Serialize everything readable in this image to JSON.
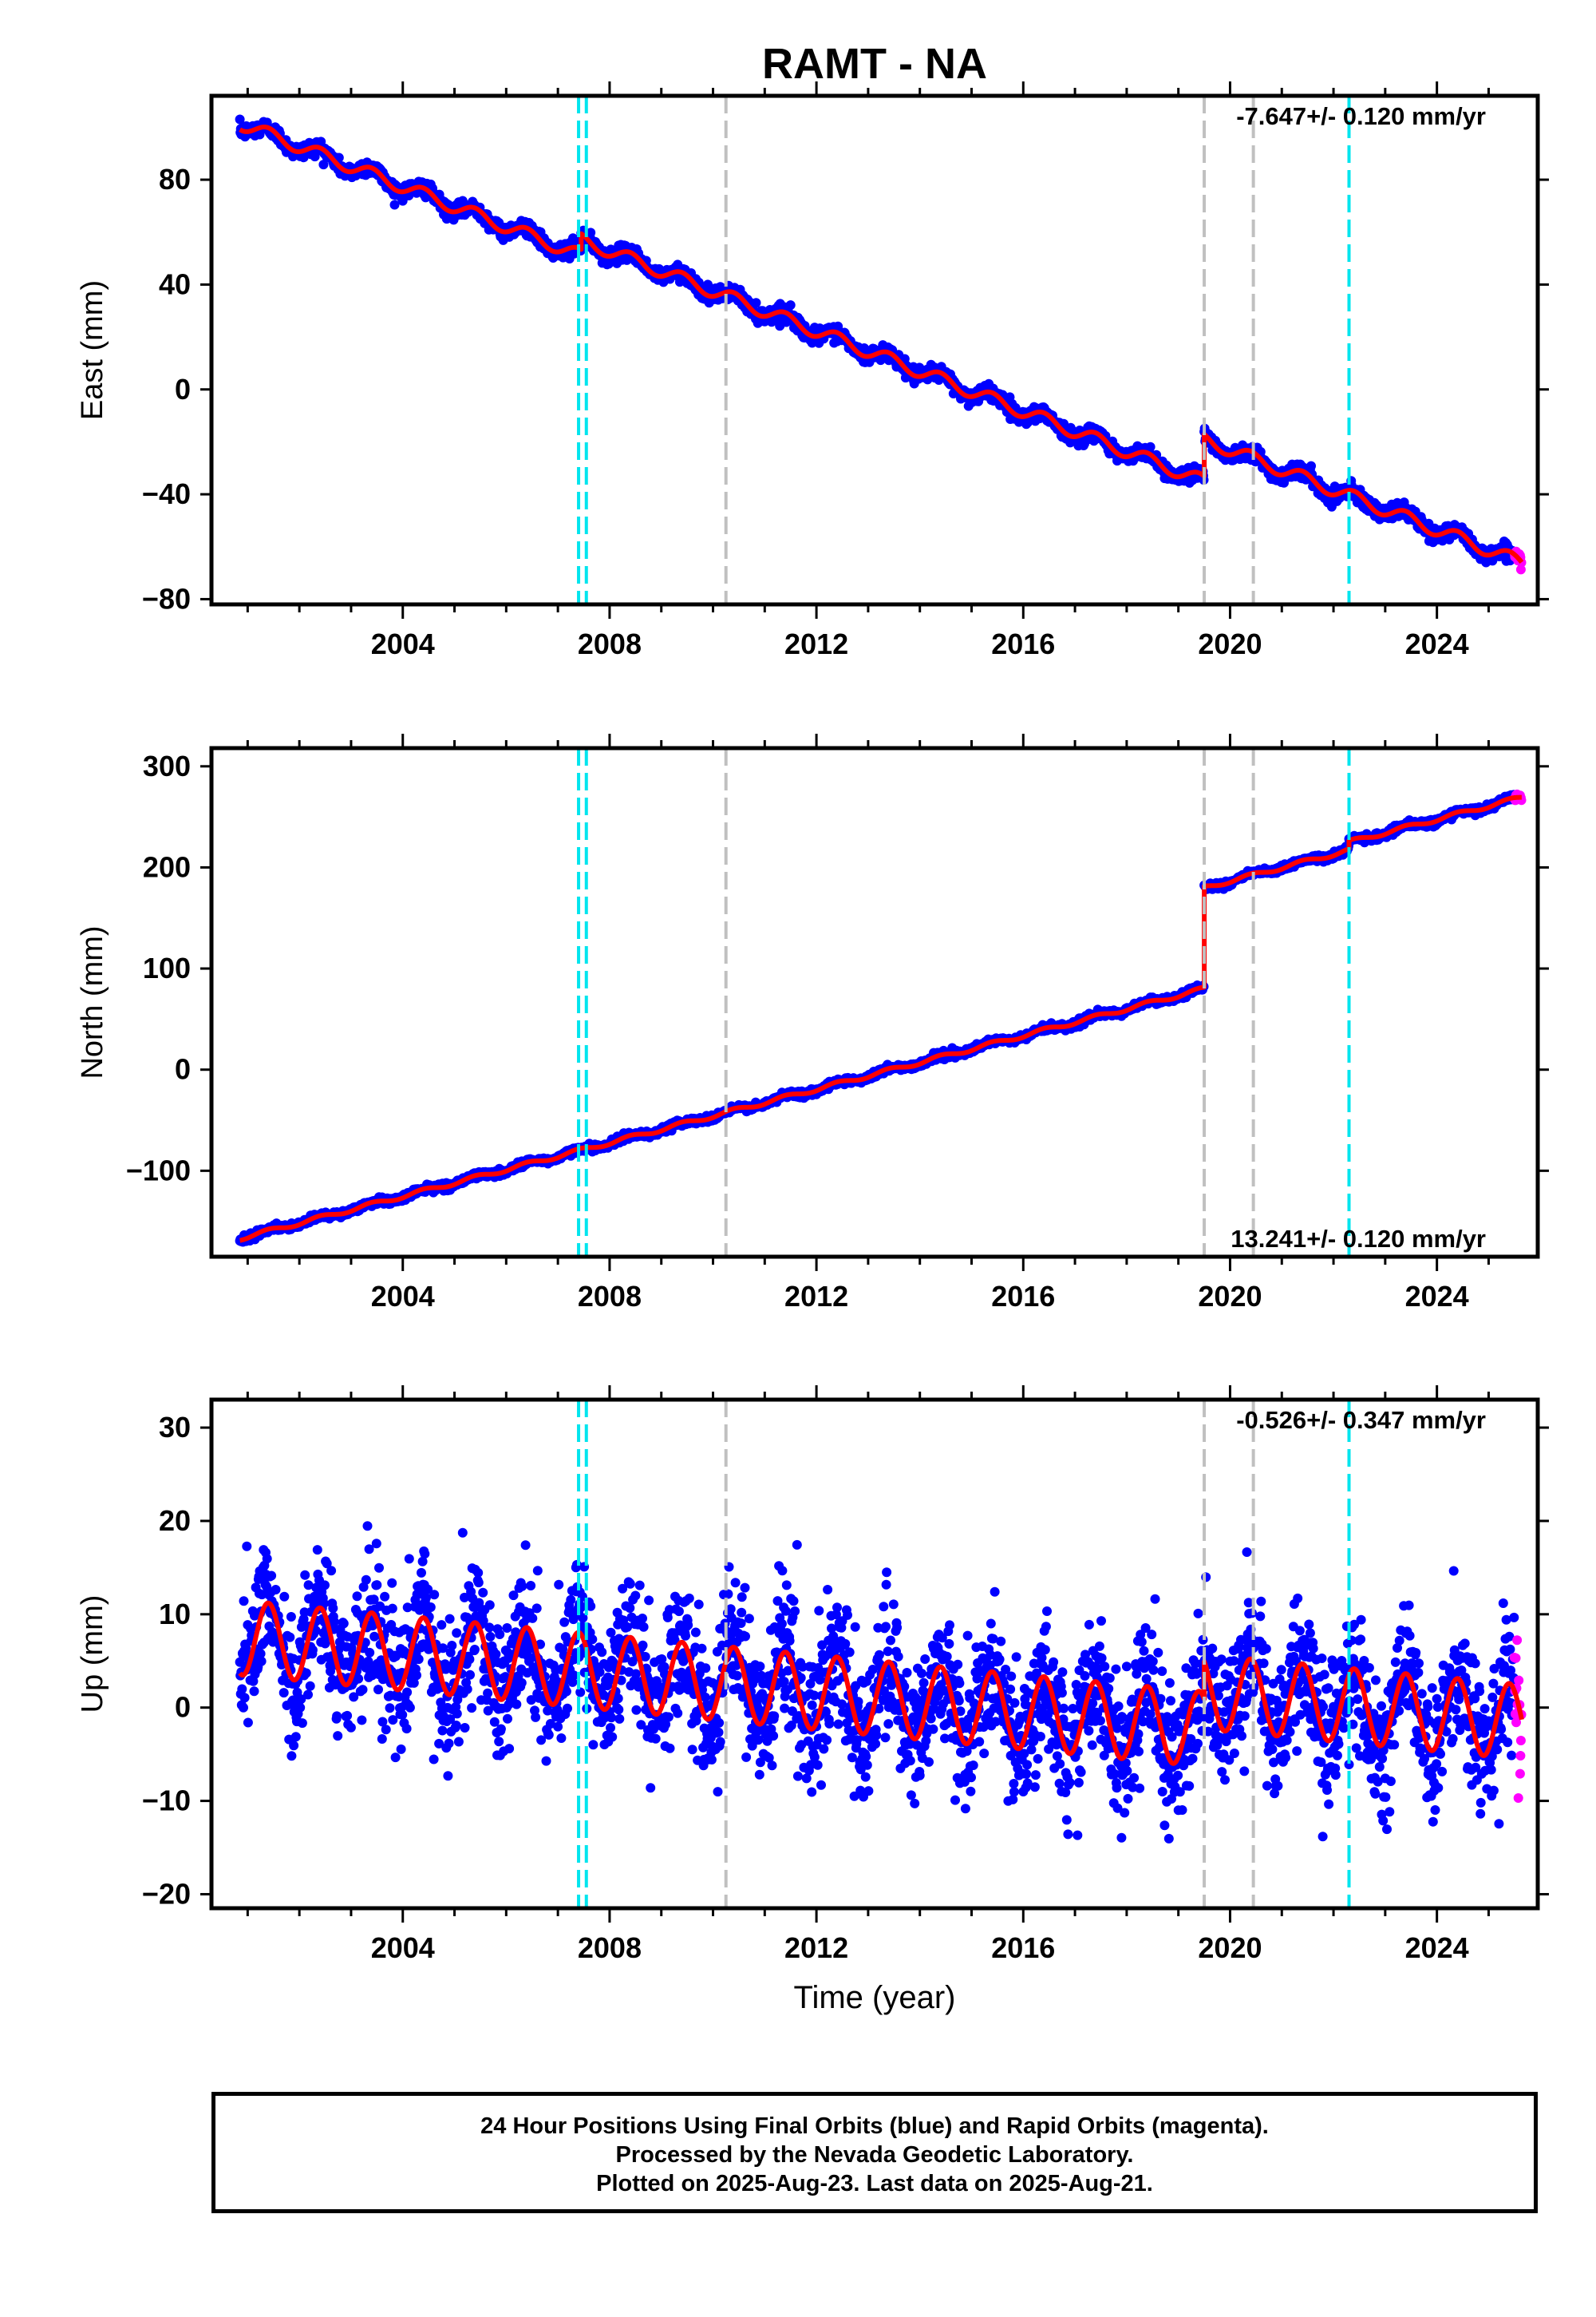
{
  "title": "RAMT - NA",
  "xlabel": "Time (year)",
  "footer": {
    "line1": "24 Hour Positions Using Final Orbits (blue) and Rapid Orbits (magenta).",
    "line2": "Processed by the Nevada Geodetic Laboratory.",
    "line3": "Plotted on 2025-Aug-23. Last data on 2025-Aug-21."
  },
  "colors": {
    "final": "#0000ff",
    "rapid": "#ff00ff",
    "model": "#ff0000",
    "equipment_change": "#00e5ee",
    "earthquake": "#c0c0c0"
  },
  "chart_data": [
    {
      "type": "scatter",
      "component": "east",
      "ylabel": "East (mm)",
      "rate_label": "-7.647+/- 0.120 mm/yr",
      "xlim": [
        2000.3,
        2025.95
      ],
      "ylim": [
        -82,
        112
      ],
      "xticks": [
        2004,
        2008,
        2012,
        2016,
        2020,
        2024
      ],
      "yticks": [
        -80,
        -40,
        0,
        40,
        80
      ],
      "x_start": 2000.85,
      "x_end": 2025.64,
      "rapid_from": 2025.5,
      "trend": {
        "rate_mm_per_yr": -7.647,
        "value_at_start": 101.5
      },
      "offsets": [
        {
          "epoch": 2007.45,
          "jump_mm": 6.0
        },
        {
          "epoch": 2019.5,
          "jump_mm": 16.0
        }
      ],
      "seasonal": {
        "amplitude_mm": 2.5
      },
      "noise_sd_mm": 1.4,
      "vlines": [
        {
          "x": 2007.4,
          "kind": "equipment_change"
        },
        {
          "x": 2007.55,
          "kind": "equipment_change"
        },
        {
          "x": 2010.25,
          "kind": "earthquake"
        },
        {
          "x": 2019.5,
          "kind": "earthquake"
        },
        {
          "x": 2020.45,
          "kind": "earthquake"
        },
        {
          "x": 2022.3,
          "kind": "equipment_change"
        }
      ]
    },
    {
      "type": "scatter",
      "component": "north",
      "ylabel": "North (mm)",
      "rate_label": "13.241+/- 0.120 mm/yr",
      "xlim": [
        2000.3,
        2025.95
      ],
      "ylim": [
        -185,
        318
      ],
      "xticks": [
        2004,
        2008,
        2012,
        2016,
        2020,
        2024
      ],
      "yticks": [
        -100,
        0,
        100,
        200,
        300
      ],
      "x_start": 2000.85,
      "x_end": 2025.64,
      "rapid_from": 2025.5,
      "trend": {
        "rate_mm_per_yr": 13.241,
        "value_at_start": -167
      },
      "offsets": [
        {
          "epoch": 2019.5,
          "jump_mm": 100.0
        },
        {
          "epoch": 2022.3,
          "jump_mm": 8.0
        }
      ],
      "seasonal": {
        "amplitude_mm": 2.0
      },
      "noise_sd_mm": 1.6,
      "vlines": [
        {
          "x": 2007.4,
          "kind": "equipment_change"
        },
        {
          "x": 2007.55,
          "kind": "equipment_change"
        },
        {
          "x": 2010.25,
          "kind": "earthquake"
        },
        {
          "x": 2019.5,
          "kind": "earthquake"
        },
        {
          "x": 2020.45,
          "kind": "earthquake"
        },
        {
          "x": 2022.3,
          "kind": "equipment_change"
        }
      ]
    },
    {
      "type": "scatter",
      "component": "up",
      "ylabel": "Up (mm)",
      "rate_label": "-0.526+/- 0.347 mm/yr",
      "xlim": [
        2000.3,
        2025.95
      ],
      "ylim": [
        -21.5,
        33
      ],
      "xticks": [
        2004,
        2008,
        2012,
        2016,
        2020,
        2024
      ],
      "yticks": [
        -20,
        -10,
        0,
        10,
        20,
        30
      ],
      "x_start": 2000.85,
      "x_end": 2025.64,
      "rapid_from": 2025.5,
      "trend": {
        "rate_mm_per_yr": -0.526,
        "value_at_start": 7.5
      },
      "offsets": [
        {
          "epoch": 2019.5,
          "jump_mm": 4.0
        }
      ],
      "seasonal": {
        "amplitude_mm": 4.0
      },
      "noise_sd_mm": 3.5,
      "vlines": [
        {
          "x": 2007.4,
          "kind": "equipment_change"
        },
        {
          "x": 2007.55,
          "kind": "equipment_change"
        },
        {
          "x": 2010.25,
          "kind": "earthquake"
        },
        {
          "x": 2019.5,
          "kind": "earthquake"
        },
        {
          "x": 2020.45,
          "kind": "earthquake"
        },
        {
          "x": 2022.3,
          "kind": "equipment_change"
        }
      ]
    }
  ]
}
